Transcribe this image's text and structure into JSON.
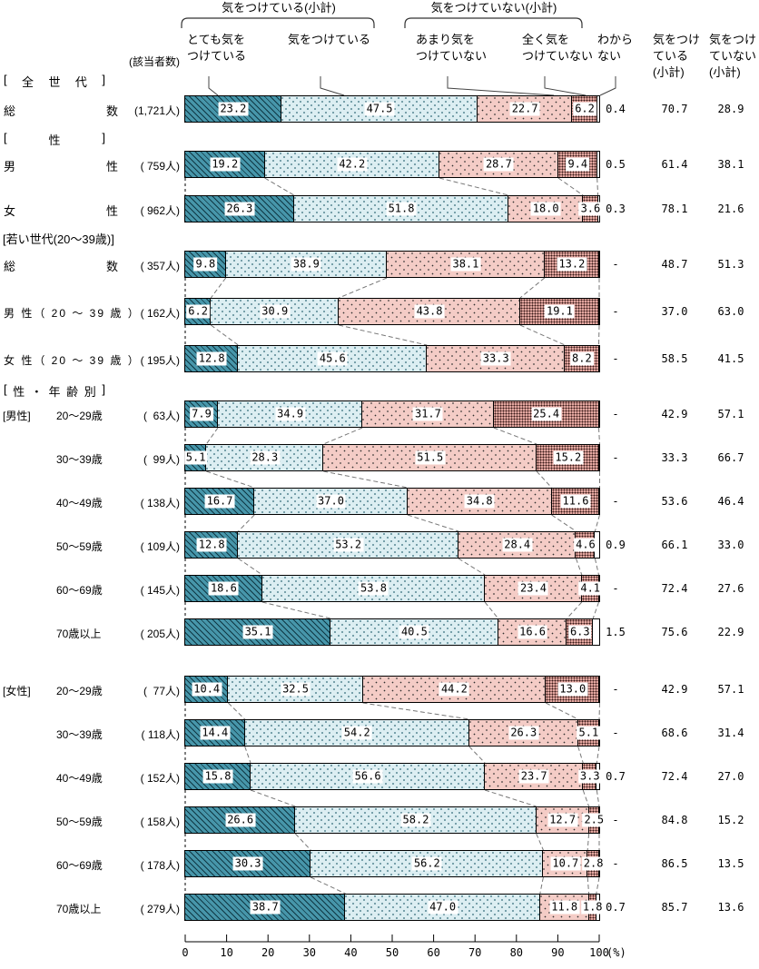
{
  "labels": {
    "respondents_header": "(該当者数)",
    "percent_label": "(%)"
  },
  "legend": {
    "group_labels": [
      "気をつけている(小計)",
      "気をつけていない(小計)"
    ],
    "category_headers": [
      {
        "lines": [
          "とても気を",
          "つけている"
        ]
      },
      {
        "lines": [
          "気をつけている"
        ]
      },
      {
        "lines": [
          "あまり気を",
          "つけていない"
        ]
      },
      {
        "lines": [
          "全く気を",
          "つけていない"
        ]
      },
      {
        "lines": [
          "わから",
          "ない"
        ]
      }
    ],
    "subtotal_headers": [
      {
        "lines": [
          "気をつけ",
          "ている",
          "(小計)"
        ]
      },
      {
        "lines": [
          "気をつけ",
          "ていない",
          "(小計)"
        ]
      }
    ]
  },
  "colors": {
    "seg_very_careful": "#4796aa",
    "seg_careful": "#dceef2",
    "seg_not_very_careful": "#f4ccc6",
    "seg_not_at_all_careful": "#e2a69f",
    "seg_unknown": "#ffffff",
    "border": "#000000"
  },
  "chart_data": {
    "type": "bar",
    "orientation": "horizontal-stacked",
    "xlim": [
      0,
      100
    ],
    "x_ticks": [
      0,
      10,
      20,
      30,
      40,
      50,
      60,
      70,
      80,
      90,
      100
    ],
    "series_names": [
      "とても気をつけている",
      "気をつけている",
      "あまり気をつけていない",
      "全く気をつけていない",
      "わからない"
    ],
    "sections": [
      {
        "header": "[ 全 世 代 ]",
        "header_style": "spread",
        "rows": [
          {
            "label": "総数",
            "label_style": "justify",
            "count": "(1,721人)",
            "values": [
              23.2,
              47.5,
              22.7,
              6.2,
              0.4
            ],
            "seg_labels": [
              "23.2",
              "47.5",
              "22.7",
              "6.2"
            ],
            "unknown": "0.4",
            "care": "70.7",
            "nocare": "28.9",
            "connect_prev": false
          }
        ]
      },
      {
        "header": "[ 性 ]",
        "header_style": "spread",
        "rows": [
          {
            "label": "男性",
            "label_style": "justify",
            "count": "( 759人)",
            "values": [
              19.2,
              42.2,
              28.7,
              9.4,
              0.5
            ],
            "seg_labels": [
              "19.2",
              "42.2",
              "28.7",
              "9.4"
            ],
            "unknown": "0.5",
            "care": "61.4",
            "nocare": "38.1",
            "connect_prev": false
          },
          {
            "label": "女性",
            "label_style": "justify",
            "count": "( 962人)",
            "values": [
              26.3,
              51.8,
              18.0,
              3.6,
              0.3
            ],
            "seg_labels": [
              "26.3",
              "51.8",
              "18.0",
              "3.6"
            ],
            "unknown": "0.3",
            "care": "78.1",
            "nocare": "21.6",
            "connect_prev": true
          }
        ]
      },
      {
        "header": "[若い世代(20～39歳)]",
        "header_style": "plain",
        "rows": [
          {
            "label": "総数",
            "label_style": "justify",
            "count": "( 357人)",
            "values": [
              9.8,
              38.9,
              38.1,
              13.2,
              0
            ],
            "seg_labels": [
              "9.8",
              "38.9",
              "38.1",
              "13.2"
            ],
            "unknown": "-",
            "care": "48.7",
            "nocare": "51.3",
            "connect_prev": false
          },
          {
            "label": "男 性（ 20 ～ 39 歳 ）",
            "label_style": "long",
            "count": "( 162人)",
            "values": [
              6.2,
              30.9,
              43.8,
              19.1,
              0
            ],
            "seg_labels": [
              "6.2",
              "30.9",
              "43.8",
              "19.1"
            ],
            "unknown": "-",
            "care": "37.0",
            "nocare": "63.0",
            "connect_prev": true
          },
          {
            "label": "女 性（ 20 ～ 39 歳 ）",
            "label_style": "long",
            "count": "( 195人)",
            "values": [
              12.8,
              45.6,
              33.3,
              8.2,
              0
            ],
            "seg_labels": [
              "12.8",
              "45.6",
              "33.3",
              "8.2"
            ],
            "unknown": "-",
            "care": "58.5",
            "nocare": "41.5",
            "connect_prev": true
          }
        ]
      },
      {
        "header": "[ 性 ・ 年 齢 別 ]",
        "header_style": "spread",
        "rows": [
          {
            "prefix": "[男性]",
            "label": "20～29歳",
            "label_style": "age",
            "count": "(  63人)",
            "values": [
              7.9,
              34.9,
              31.7,
              25.4,
              0
            ],
            "seg_labels": [
              "7.9",
              "34.9",
              "31.7",
              "25.4"
            ],
            "unknown": "-",
            "care": "42.9",
            "nocare": "57.1",
            "connect_prev": false
          },
          {
            "label": "30～39歳",
            "label_style": "age",
            "count": "(  99人)",
            "values": [
              5.1,
              28.3,
              51.5,
              15.2,
              0
            ],
            "seg_labels": [
              "5.1",
              "28.3",
              "51.5",
              "15.2"
            ],
            "unknown": "-",
            "care": "33.3",
            "nocare": "66.7",
            "connect_prev": true
          },
          {
            "label": "40～49歳",
            "label_style": "age",
            "count": "( 138人)",
            "values": [
              16.7,
              37.0,
              34.8,
              11.6,
              0
            ],
            "seg_labels": [
              "16.7",
              "37.0",
              "34.8",
              "11.6"
            ],
            "unknown": "-",
            "care": "53.6",
            "nocare": "46.4",
            "connect_prev": true
          },
          {
            "label": "50～59歳",
            "label_style": "age",
            "count": "( 109人)",
            "values": [
              12.8,
              53.2,
              28.4,
              4.6,
              0.9
            ],
            "seg_labels": [
              "12.8",
              "53.2",
              "28.4",
              "4.6"
            ],
            "unknown": "0.9",
            "care": "66.1",
            "nocare": "33.0",
            "connect_prev": true
          },
          {
            "label": "60～69歳",
            "label_style": "age",
            "count": "( 145人)",
            "values": [
              18.6,
              53.8,
              23.4,
              4.1,
              0
            ],
            "seg_labels": [
              "18.6",
              "53.8",
              "23.4",
              "4.1"
            ],
            "unknown": "-",
            "care": "72.4",
            "nocare": "27.6",
            "connect_prev": true
          },
          {
            "label": "70歳以上",
            "label_style": "age",
            "count": "( 205人)",
            "values": [
              35.1,
              40.5,
              16.6,
              6.3,
              1.5
            ],
            "seg_labels": [
              "35.1",
              "40.5",
              "16.6",
              "6.3"
            ],
            "unknown": "1.5",
            "care": "75.6",
            "nocare": "22.9",
            "connect_prev": true
          },
          {
            "prefix": "[女性]",
            "label": "20～29歳",
            "label_style": "age",
            "count": "(  77人)",
            "values": [
              10.4,
              32.5,
              44.2,
              13.0,
              0
            ],
            "seg_labels": [
              "10.4",
              "32.5",
              "44.2",
              "13.0"
            ],
            "unknown": "-",
            "care": "42.9",
            "nocare": "57.1",
            "connect_prev": false
          },
          {
            "label": "30～39歳",
            "label_style": "age",
            "count": "( 118人)",
            "values": [
              14.4,
              54.2,
              26.3,
              5.1,
              0
            ],
            "seg_labels": [
              "14.4",
              "54.2",
              "26.3",
              "5.1"
            ],
            "unknown": "-",
            "care": "68.6",
            "nocare": "31.4",
            "connect_prev": true
          },
          {
            "label": "40～49歳",
            "label_style": "age",
            "count": "( 152人)",
            "values": [
              15.8,
              56.6,
              23.7,
              3.3,
              0.7
            ],
            "seg_labels": [
              "15.8",
              "56.6",
              "23.7",
              "3.3"
            ],
            "unknown": "0.7",
            "care": "72.4",
            "nocare": "27.0",
            "connect_prev": true
          },
          {
            "label": "50～59歳",
            "label_style": "age",
            "count": "( 158人)",
            "values": [
              26.6,
              58.2,
              12.7,
              2.5,
              0
            ],
            "seg_labels": [
              "26.6",
              "58.2",
              "12.7",
              "2.5"
            ],
            "unknown": "-",
            "care": "84.8",
            "nocare": "15.2",
            "connect_prev": true
          },
          {
            "label": "60～69歳",
            "label_style": "age",
            "count": "( 178人)",
            "values": [
              30.3,
              56.2,
              10.7,
              2.8,
              0
            ],
            "seg_labels": [
              "30.3",
              "56.2",
              "10.7",
              "2.8"
            ],
            "unknown": "-",
            "care": "86.5",
            "nocare": "13.5",
            "connect_prev": true
          },
          {
            "label": "70歳以上",
            "label_style": "age",
            "count": "( 279人)",
            "values": [
              38.7,
              47.0,
              11.8,
              1.8,
              0.7
            ],
            "seg_labels": [
              "38.7",
              "47.0",
              "11.8",
              "1.8"
            ],
            "unknown": "0.7",
            "care": "85.7",
            "nocare": "13.6",
            "connect_prev": true
          }
        ]
      }
    ]
  }
}
